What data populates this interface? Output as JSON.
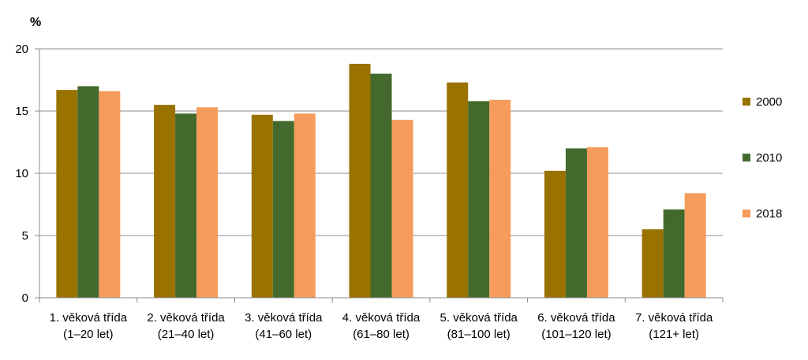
{
  "chart_data": {
    "type": "bar",
    "ylabel": "%",
    "xlabel": "",
    "ylim": [
      0,
      20
    ],
    "yticks": [
      0,
      5,
      10,
      15,
      20
    ],
    "grid": true,
    "legend_position": "right",
    "categories": [
      [
        "1. věková třída",
        "(1–20 let)"
      ],
      [
        "2. věková třída",
        "(21–40 let)"
      ],
      [
        "3. věková třída",
        "(41–60 let)"
      ],
      [
        "4. věková třída",
        "(61–80 let)"
      ],
      [
        "5. věková třída",
        "(81–100 let)"
      ],
      [
        "6. věková třída",
        "(101–120 let)"
      ],
      [
        "7. věková třída",
        "(121+ let)"
      ]
    ],
    "series": [
      {
        "name": "2000",
        "color": "#9a7200",
        "values": [
          16.7,
          15.5,
          14.7,
          18.8,
          17.3,
          10.2,
          5.5
        ]
      },
      {
        "name": "2010",
        "color": "#436a2c",
        "values": [
          17.0,
          14.8,
          14.2,
          18.0,
          15.8,
          12.0,
          7.1
        ]
      },
      {
        "name": "2018",
        "color": "#f59c5c",
        "values": [
          16.6,
          15.3,
          14.8,
          14.3,
          15.9,
          12.1,
          8.4
        ]
      }
    ]
  }
}
